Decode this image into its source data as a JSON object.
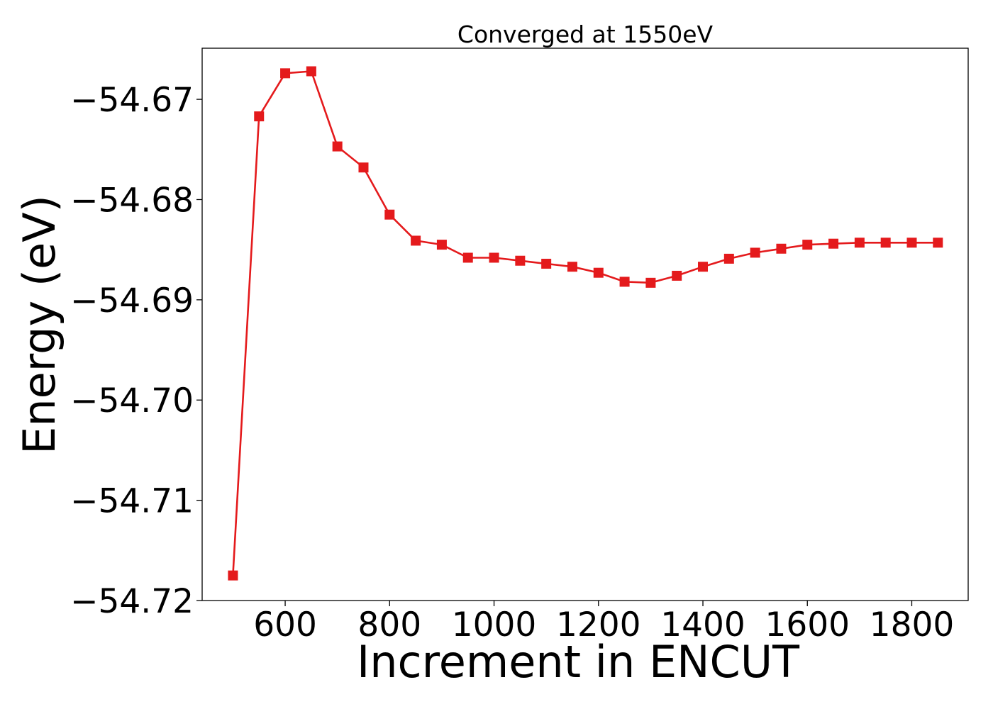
{
  "chart_data": {
    "type": "line",
    "title": "Converged at 1550eV",
    "xlabel": "Increment in ENCUT",
    "ylabel": "Energy (eV)",
    "xlim": [
      441,
      1908
    ],
    "ylim": [
      -54.72,
      -54.6649
    ],
    "xticks": [
      600,
      800,
      1000,
      1200,
      1400,
      1600,
      1800
    ],
    "xtick_labels": [
      "600",
      "800",
      "1000",
      "1200",
      "1400",
      "1600",
      "1800"
    ],
    "yticks": [
      -54.67,
      -54.68,
      -54.69,
      -54.7,
      -54.71,
      -54.72
    ],
    "ytick_labels": [
      "−54.67",
      "−54.68",
      "−54.69",
      "−54.70",
      "−54.71",
      "−54.72"
    ],
    "grid": false,
    "legend": "none",
    "series": [
      {
        "color": "#e41a1c",
        "marker": "square",
        "x": [
          500,
          550,
          600,
          650,
          700,
          750,
          800,
          850,
          900,
          950,
          1000,
          1050,
          1100,
          1150,
          1200,
          1250,
          1300,
          1350,
          1400,
          1450,
          1500,
          1550,
          1600,
          1650,
          1700,
          1750,
          1800,
          1850
        ],
        "y": [
          -54.7175,
          -54.6717,
          -54.6674,
          -54.6672,
          -54.6747,
          -54.6768,
          -54.6815,
          -54.6841,
          -54.6845,
          -54.6858,
          -54.6858,
          -54.6861,
          -54.6864,
          -54.6867,
          -54.6873,
          -54.6882,
          -54.6883,
          -54.6876,
          -54.6867,
          -54.6859,
          -54.6853,
          -54.6849,
          -54.6845,
          -54.6844,
          -54.6843,
          -54.6843,
          -54.6843,
          -54.6843
        ]
      }
    ]
  }
}
